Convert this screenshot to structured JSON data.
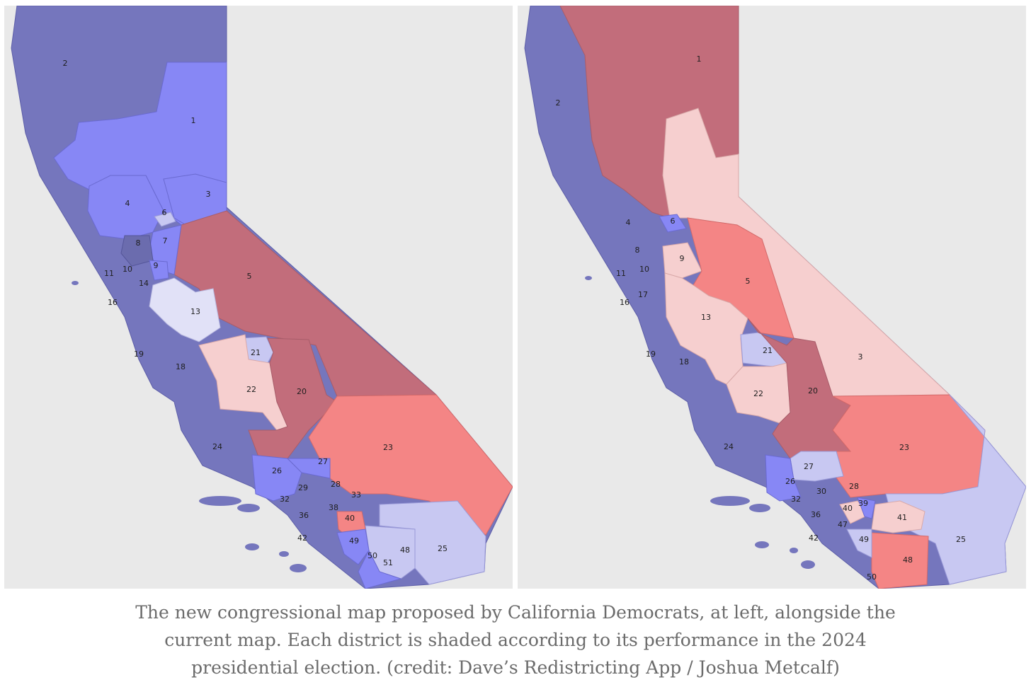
{
  "colors": {
    "strong_dem": "#7576bd",
    "dem": "#8787f5",
    "lean_dem": "#c8c8f2",
    "tilt_dem": "#e1e1f7",
    "tilt_rep": "#f6cfcf",
    "lean_rep": "#f48585",
    "strong_rep": "#c26d7b",
    "land": "#e9e9e9"
  },
  "maps": {
    "proposed": {
      "labels": [
        "1",
        "2",
        "3",
        "4",
        "5",
        "6",
        "7",
        "8",
        "9",
        "10",
        "11",
        "13",
        "14",
        "16",
        "18",
        "19",
        "20",
        "21",
        "22",
        "23",
        "24",
        "25",
        "26",
        "27",
        "28",
        "29",
        "32",
        "33",
        "36",
        "38",
        "40",
        "42",
        "48",
        "49",
        "50",
        "51"
      ]
    },
    "current": {
      "labels": [
        "1",
        "2",
        "3",
        "4",
        "5",
        "6",
        "8",
        "9",
        "10",
        "11",
        "13",
        "16",
        "17",
        "18",
        "19",
        "20",
        "21",
        "22",
        "23",
        "24",
        "25",
        "26",
        "27",
        "28",
        "30",
        "32",
        "36",
        "39",
        "40",
        "41",
        "42",
        "47",
        "48",
        "49",
        "50"
      ]
    }
  },
  "caption": {
    "line1": "The new congressional map proposed by California Democrats, at left, alongside the",
    "line2": "current map. Each district is shaded according to its performance in the 2024",
    "line3": "presidential election. (credit: Dave’s Redistricting App / Joshua Metcalf)"
  }
}
